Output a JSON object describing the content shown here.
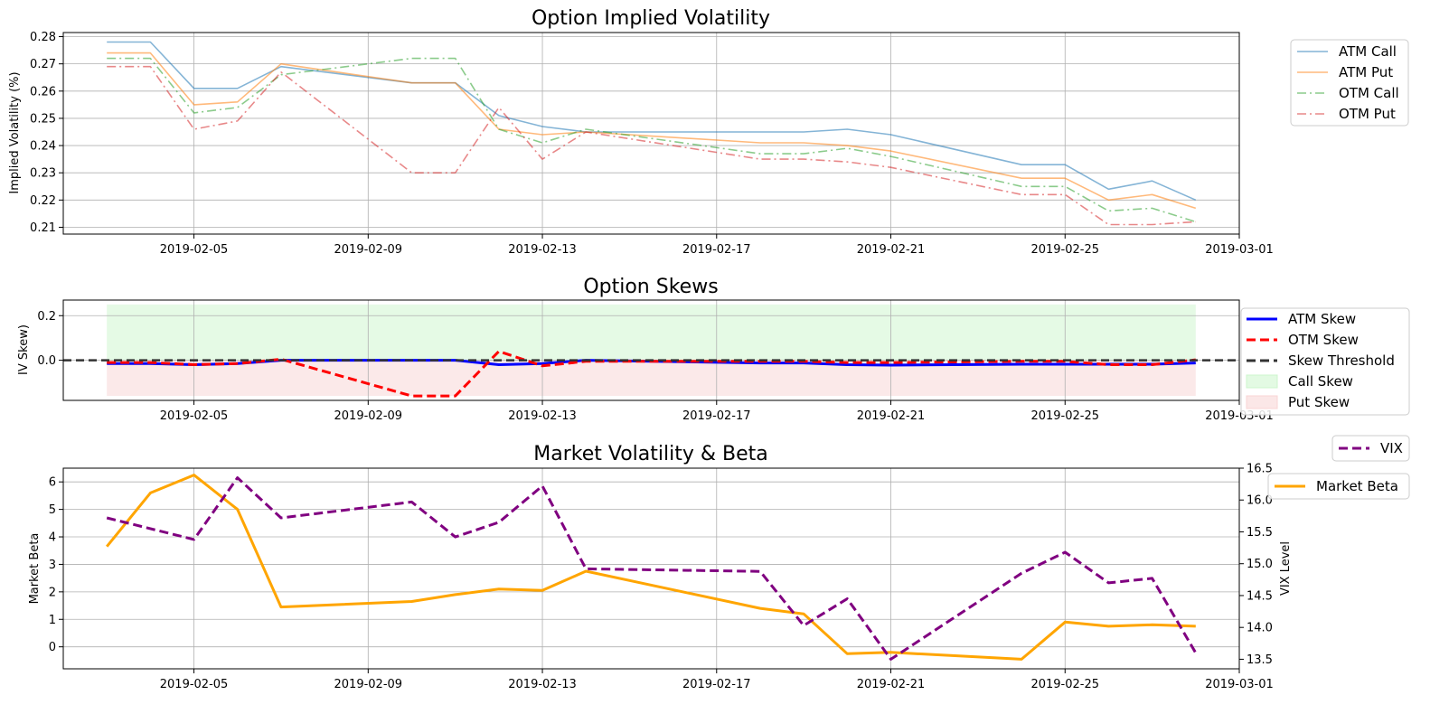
{
  "chart_data": [
    {
      "type": "line",
      "title": "Option Implied Volatility",
      "xlabel": "",
      "ylabel": "Implied Volatility (%)",
      "x": [
        "2019-02-03",
        "2019-02-04",
        "2019-02-05",
        "2019-02-06",
        "2019-02-07",
        "2019-02-10",
        "2019-02-11",
        "2019-02-12",
        "2019-02-13",
        "2019-02-14",
        "2019-02-18",
        "2019-02-19",
        "2019-02-20",
        "2019-02-21",
        "2019-02-24",
        "2019-02-25",
        "2019-02-26",
        "2019-02-27",
        "2019-02-28"
      ],
      "xticks": [
        "2019-02-05",
        "2019-02-09",
        "2019-02-13",
        "2019-02-17",
        "2019-02-21",
        "2019-02-25",
        "2019-03-01"
      ],
      "xlim": [
        "2019-02-02",
        "2019-03-01"
      ],
      "ylim": [
        0.2075,
        0.2815
      ],
      "yticks": [
        0.21,
        0.22,
        0.23,
        0.24,
        0.25,
        0.26,
        0.27,
        0.28
      ],
      "grid": true,
      "legend_position": "outside-right",
      "series": [
        {
          "name": "ATM Call",
          "color": "#1f77b4",
          "style": "solid",
          "values": [
            0.278,
            0.278,
            0.261,
            0.261,
            0.269,
            0.263,
            0.263,
            0.251,
            0.247,
            0.245,
            0.245,
            0.245,
            0.246,
            0.244,
            0.233,
            0.233,
            0.224,
            0.227,
            0.22
          ]
        },
        {
          "name": "ATM Put",
          "color": "#ff7f0e",
          "style": "solid",
          "values": [
            0.274,
            0.274,
            0.255,
            0.256,
            0.27,
            0.263,
            0.263,
            0.246,
            0.244,
            0.245,
            0.241,
            0.241,
            0.24,
            0.238,
            0.228,
            0.228,
            0.22,
            0.222,
            0.217
          ]
        },
        {
          "name": "OTM Call",
          "color": "#2ca02c",
          "style": "dashdot",
          "values": [
            0.272,
            0.272,
            0.252,
            0.254,
            0.266,
            0.272,
            0.272,
            0.246,
            0.241,
            0.246,
            0.237,
            0.237,
            0.239,
            0.236,
            0.225,
            0.225,
            0.216,
            0.217,
            0.212
          ]
        },
        {
          "name": "OTM Put",
          "color": "#d62728",
          "style": "dashdot",
          "values": [
            0.269,
            0.269,
            0.246,
            0.249,
            0.267,
            0.23,
            0.23,
            0.254,
            0.235,
            0.245,
            0.235,
            0.235,
            0.234,
            0.232,
            0.222,
            0.222,
            0.211,
            0.211,
            0.212
          ]
        }
      ]
    },
    {
      "type": "line",
      "title": "Option Skews",
      "xlabel": "",
      "ylabel": "IV Skew)",
      "x": [
        "2019-02-03",
        "2019-02-04",
        "2019-02-05",
        "2019-02-06",
        "2019-02-07",
        "2019-02-10",
        "2019-02-11",
        "2019-02-12",
        "2019-02-13",
        "2019-02-14",
        "2019-02-18",
        "2019-02-19",
        "2019-02-20",
        "2019-02-21",
        "2019-02-24",
        "2019-02-25",
        "2019-02-26",
        "2019-02-27",
        "2019-02-28"
      ],
      "xticks": [
        "2019-02-05",
        "2019-02-09",
        "2019-02-13",
        "2019-02-17",
        "2019-02-21",
        "2019-02-25",
        "2019-03-01"
      ],
      "xlim": [
        "2019-02-02",
        "2019-03-01"
      ],
      "ylim": [
        -0.18,
        0.27
      ],
      "yticks": [
        0.0,
        0.2
      ],
      "grid": true,
      "legend_position": "outside-right",
      "series": [
        {
          "name": "ATM Skew",
          "color": "#0000ff",
          "style": "solid",
          "values": [
            -0.015,
            -0.015,
            -0.02,
            -0.015,
            0.0,
            0.0,
            0.0,
            -0.02,
            -0.015,
            0.0,
            -0.012,
            -0.012,
            -0.02,
            -0.022,
            -0.018,
            -0.018,
            -0.018,
            -0.018,
            -0.012
          ]
        },
        {
          "name": "OTM Skew",
          "color": "#ff0000",
          "style": "dashed",
          "values": [
            -0.01,
            -0.01,
            -0.02,
            -0.015,
            0.005,
            -0.16,
            -0.16,
            0.04,
            -0.025,
            -0.005,
            -0.005,
            -0.005,
            -0.01,
            -0.01,
            -0.005,
            -0.005,
            -0.02,
            -0.02,
            0.002
          ]
        }
      ],
      "threshold": {
        "name": "Skew Threshold",
        "value": 0.0,
        "color": "#333333",
        "style": "dashed"
      },
      "bands": [
        {
          "name": "Call Skew",
          "range": [
            0.0,
            0.25
          ],
          "color": "#ccf5cc"
        },
        {
          "name": "Put Skew",
          "range": [
            -0.16,
            0.0
          ],
          "color": "#f8d4d4"
        }
      ]
    },
    {
      "type": "line",
      "title": "Market Volatility & Beta",
      "xlabel": "",
      "ylabel": "Market Beta",
      "y2label": "VIX Level",
      "xticks": [
        "2019-02-05",
        "2019-02-09",
        "2019-02-13",
        "2019-02-17",
        "2019-02-21",
        "2019-02-25",
        "2019-03-01"
      ],
      "xlim": [
        "2019-02-02",
        "2019-03-01"
      ],
      "ylim": [
        -0.8,
        6.5
      ],
      "yticks": [
        0,
        1,
        2,
        3,
        4,
        5,
        6
      ],
      "y2lim": [
        13.35,
        16.5
      ],
      "y2ticks": [
        "13.5",
        "14.0",
        "14.5",
        "15.0",
        "15.5",
        "16.0",
        "16.5"
      ],
      "grid": true,
      "legend_position": "outside-right",
      "series": [
        {
          "name": "Market Beta",
          "axis": "left",
          "color": "#ffa500",
          "style": "solid",
          "x": [
            "2019-02-03",
            "2019-02-04",
            "2019-02-05",
            "2019-02-06",
            "2019-02-07",
            "2019-02-10",
            "2019-02-11",
            "2019-02-12",
            "2019-02-13",
            "2019-02-14",
            "2019-02-18",
            "2019-02-19",
            "2019-02-20",
            "2019-02-21",
            "2019-02-24",
            "2019-02-25",
            "2019-02-26",
            "2019-02-27",
            "2019-02-28"
          ],
          "values": [
            3.65,
            5.6,
            6.25,
            5.0,
            1.45,
            1.65,
            1.9,
            2.1,
            2.05,
            2.75,
            1.4,
            1.2,
            -0.25,
            -0.2,
            -0.45,
            0.9,
            0.75,
            0.8,
            0.75
          ]
        },
        {
          "name": "VIX",
          "axis": "right",
          "color": "#800080",
          "style": "dashed",
          "x": [
            "2019-02-03",
            "2019-02-05",
            "2019-02-06",
            "2019-02-07",
            "2019-02-10",
            "2019-02-11",
            "2019-02-12",
            "2019-02-13",
            "2019-02-14",
            "2019-02-18",
            "2019-02-19",
            "2019-02-20",
            "2019-02-21",
            "2019-02-24",
            "2019-02-25",
            "2019-02-26",
            "2019-02-27",
            "2019-02-28"
          ],
          "values": [
            15.72,
            15.38,
            16.35,
            15.72,
            15.97,
            15.42,
            15.65,
            16.22,
            14.92,
            14.88,
            14.03,
            14.45,
            13.5,
            14.85,
            15.18,
            14.7,
            14.77,
            13.6
          ]
        }
      ]
    }
  ]
}
